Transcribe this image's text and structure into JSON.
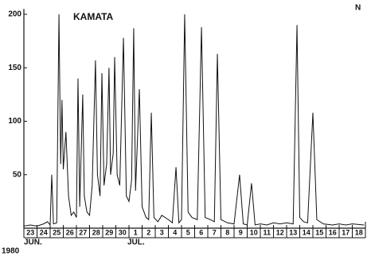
{
  "chart_data": {
    "type": "line",
    "title": "KAMATA",
    "y_label": "N",
    "annotations": [
      "JUN.",
      "JUL.",
      "1980"
    ],
    "x": [
      23.0,
      23.5,
      24.0,
      24.5,
      24.8,
      25.0,
      25.12,
      25.25,
      25.5,
      25.67,
      25.8,
      25.9,
      26.0,
      26.2,
      26.4,
      26.6,
      26.8,
      27.0,
      27.12,
      27.25,
      27.48,
      27.6,
      27.8,
      28.0,
      28.2,
      28.45,
      28.6,
      28.8,
      28.94,
      29.1,
      29.3,
      29.48,
      29.6,
      29.8,
      29.91,
      30.1,
      30.3,
      30.58,
      30.8,
      31.0,
      31.2,
      31.36,
      31.5,
      31.79,
      32.0,
      32.3,
      32.5,
      32.7,
      32.9,
      33.2,
      33.5,
      34.0,
      34.3,
      34.58,
      34.8,
      35.0,
      35.24,
      35.5,
      35.8,
      36.2,
      36.52,
      36.8,
      37.2,
      37.5,
      37.73,
      38.0,
      38.5,
      39.0,
      39.42,
      39.7,
      40.0,
      40.33,
      40.6,
      41.0,
      41.5,
      42.0,
      42.5,
      43.0,
      43.5,
      43.79,
      44.0,
      44.3,
      44.6,
      45.0,
      45.3,
      45.8,
      46.5,
      47.0,
      47.5,
      48.0,
      48.9
    ],
    "series": [
      {
        "name": "N",
        "color": "#111111",
        "values": [
          2,
          3,
          2,
          4,
          6,
          3,
          50,
          4,
          5,
          200,
          60,
          120,
          55,
          90,
          30,
          12,
          15,
          10,
          140,
          20,
          125,
          30,
          15,
          12,
          40,
          157,
          50,
          30,
          145,
          40,
          60,
          150,
          50,
          70,
          160,
          50,
          40,
          178,
          30,
          25,
          45,
          187,
          35,
          130,
          20,
          10,
          8,
          108,
          10,
          6,
          12,
          8,
          5,
          57,
          5,
          8,
          200,
          15,
          10,
          8,
          188,
          10,
          8,
          6,
          163,
          8,
          5,
          4,
          50,
          4,
          3,
          42,
          3,
          4,
          3,
          5,
          4,
          5,
          4,
          190,
          10,
          6,
          5,
          108,
          8,
          4,
          3,
          4,
          3,
          4,
          3
        ]
      }
    ],
    "xlim": [
      23,
      49
    ],
    "ylim": [
      0,
      205
    ],
    "xticks": [
      23,
      24,
      25,
      26,
      27,
      28,
      29,
      30,
      {
        "value": 31,
        "label": "1"
      },
      {
        "value": 32,
        "label": "2"
      },
      {
        "value": 33,
        "label": "3"
      },
      {
        "value": 34,
        "label": "4"
      },
      {
        "value": 35,
        "label": "5"
      },
      {
        "value": 36,
        "label": "6"
      },
      {
        "value": 37,
        "label": "7"
      },
      {
        "value": 38,
        "label": "8"
      },
      {
        "value": 39,
        "label": "9"
      },
      {
        "value": 40,
        "label": "10"
      },
      {
        "value": 41,
        "label": "11"
      },
      {
        "value": 42,
        "label": "12"
      },
      {
        "value": 43,
        "label": "13"
      },
      {
        "value": 44,
        "label": "14"
      },
      {
        "value": 45,
        "label": "15"
      },
      {
        "value": 46,
        "label": "16"
      },
      {
        "value": 47,
        "label": "17"
      },
      {
        "value": 48,
        "label": "18"
      }
    ],
    "yticks": [
      50,
      100,
      150,
      200
    ]
  }
}
